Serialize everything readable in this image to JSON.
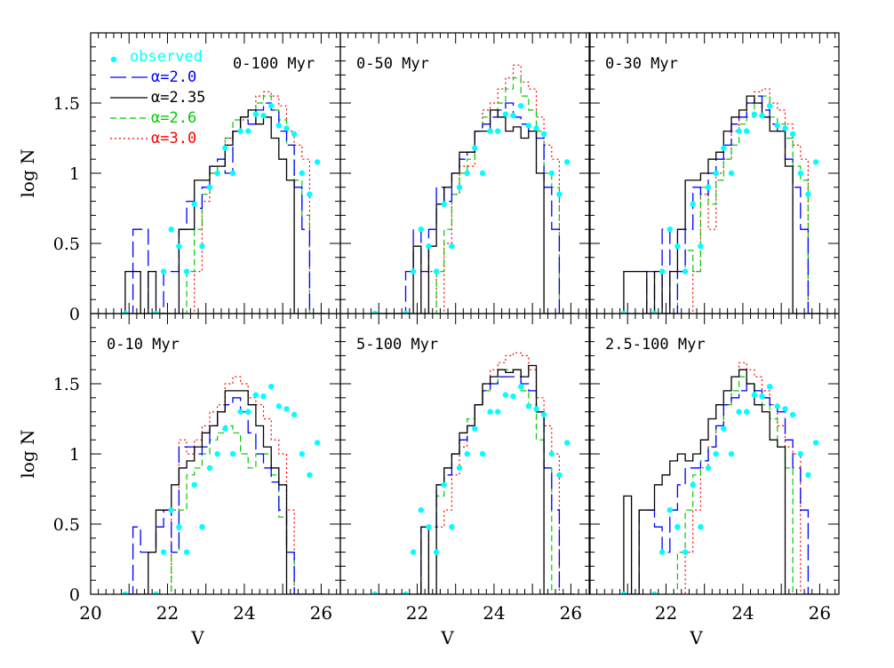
{
  "chart_data": {
    "type": "histogram-grid",
    "ylabel": "log N",
    "xlabel": "V",
    "x_ticks": [
      "20",
      "22",
      "24",
      "26"
    ],
    "y_ticks": [
      "0",
      "0.5",
      "1",
      "1.5"
    ],
    "xlim": [
      20,
      26.5
    ],
    "ylim": [
      0,
      2.0
    ],
    "legend": {
      "placement": "top-left of first panel",
      "entries": [
        {
          "key": "observed",
          "label": "observed",
          "color": "#00ffff",
          "style": "dots"
        },
        {
          "key": "a20",
          "label": "α=2.0",
          "color": "#0000ff",
          "style": "long-dash"
        },
        {
          "key": "a235",
          "label": "α=2.35",
          "color": "#000000",
          "style": "solid"
        },
        {
          "key": "a26",
          "label": "α=2.6",
          "color": "#00cc00",
          "style": "short-dash"
        },
        {
          "key": "a30",
          "label": "α=3.0",
          "color": "#ff0000",
          "style": "dotted"
        }
      ]
    },
    "bin_edges": [
      20.9,
      21.1,
      21.3,
      21.5,
      21.7,
      21.9,
      22.1,
      22.3,
      22.5,
      22.7,
      22.9,
      23.1,
      23.3,
      23.5,
      23.7,
      23.9,
      24.1,
      24.3,
      24.5,
      24.7,
      24.9,
      25.1,
      25.3,
      25.5,
      25.7,
      25.9,
      26.1
    ],
    "observed": {
      "x": [
        20.9,
        21.7,
        21.9,
        22.1,
        22.3,
        22.5,
        22.7,
        22.9,
        23.1,
        23.3,
        23.5,
        23.7,
        23.9,
        24.1,
        24.3,
        24.5,
        24.7,
        24.9,
        25.1,
        25.3,
        25.5,
        25.7,
        25.9
      ],
      "y": [
        0.0,
        0.0,
        0.3,
        0.6,
        0.48,
        0.3,
        0.78,
        0.48,
        0.9,
        1.0,
        1.18,
        1.0,
        1.3,
        1.3,
        1.42,
        1.41,
        1.48,
        1.34,
        1.32,
        1.28,
        1.0,
        0.85,
        1.08
      ]
    },
    "panels": [
      {
        "title": "0-100 Myr",
        "series": {
          "a20": [
            0,
            0.6,
            0.6,
            0,
            0,
            0.3,
            0.3,
            0.6,
            0.8,
            0.75,
            0.9,
            1.05,
            1.1,
            1.0,
            1.3,
            1.4,
            1.35,
            1.45,
            1.5,
            1.45,
            1.3,
            1.2,
            0.9,
            0.6,
            0.0,
            0.0
          ],
          "a235": [
            0.3,
            0.3,
            0,
            0.3,
            0,
            0,
            0,
            0.6,
            0.6,
            0.95,
            0.95,
            1.05,
            1.05,
            1.2,
            1.3,
            1.4,
            1.45,
            1.35,
            1.4,
            1.25,
            1.1,
            0.95,
            0.0,
            0.0,
            0.0,
            0.0
          ],
          "a26": [
            0,
            0,
            0,
            0,
            0,
            0,
            0,
            0,
            0.3,
            0.6,
            0.85,
            1.0,
            1.05,
            1.25,
            1.38,
            1.4,
            1.45,
            1.5,
            1.55,
            1.45,
            1.38,
            1.2,
            0.95,
            0.7,
            0.0,
            0.0
          ],
          "a30": [
            0,
            0,
            0,
            0,
            0,
            0,
            0,
            0,
            0,
            0.3,
            0.8,
            1.0,
            1.05,
            1.25,
            1.3,
            1.38,
            1.45,
            1.55,
            1.58,
            1.55,
            1.48,
            1.3,
            1.2,
            1.1,
            0.0,
            0.0
          ]
        }
      },
      {
        "title": "0-50 Myr",
        "series": {
          "a20": [
            0,
            0,
            0,
            0,
            0.3,
            0.6,
            0.3,
            0.6,
            0.9,
            0.8,
            1.0,
            1.1,
            1.15,
            1.3,
            1.35,
            1.4,
            1.45,
            1.5,
            1.4,
            1.35,
            1.3,
            1.25,
            0.9,
            0.6,
            0.0,
            0.0
          ],
          "a235": [
            0,
            0,
            0,
            0,
            0,
            0.48,
            0,
            0.48,
            0.78,
            0.9,
            1.0,
            1.15,
            1.15,
            1.3,
            1.3,
            1.45,
            1.4,
            1.3,
            1.33,
            1.25,
            1.3,
            1.0,
            0.0,
            0.0,
            0.0,
            0.0
          ],
          "a26": [
            0,
            0,
            0,
            0,
            0,
            0,
            0,
            0,
            0.3,
            0.6,
            0.85,
            1.0,
            1.1,
            1.3,
            1.4,
            1.45,
            1.5,
            1.6,
            1.68,
            1.55,
            1.45,
            1.3,
            1.0,
            0.9,
            0.0,
            0.0
          ],
          "a30": [
            0,
            0,
            0,
            0,
            0,
            0,
            0,
            0.3,
            0,
            0.5,
            0.85,
            1.05,
            1.05,
            1.3,
            1.45,
            1.5,
            1.6,
            1.68,
            1.77,
            1.65,
            1.6,
            1.4,
            1.2,
            1.1,
            0.0,
            0.0
          ]
        }
      },
      {
        "title": "0-30 Myr",
        "series": {
          "a20": [
            0,
            0,
            0,
            0.3,
            0,
            0.6,
            0,
            0.3,
            0.6,
            0.9,
            0.85,
            1.0,
            1.1,
            1.2,
            1.35,
            1.4,
            1.5,
            1.55,
            1.45,
            1.35,
            1.3,
            1.1,
            0.9,
            0.6,
            0.0,
            0.0
          ],
          "a235": [
            0.3,
            0.3,
            0.3,
            0,
            0.3,
            0,
            0.3,
            0.6,
            0.95,
            0.95,
            1.0,
            1.1,
            1.15,
            1.3,
            1.4,
            1.45,
            1.55,
            1.5,
            1.4,
            1.3,
            1.3,
            1.05,
            0.0,
            0.0,
            0.0,
            0.0
          ],
          "a26": [
            0,
            0,
            0,
            0,
            0,
            0,
            0,
            0.3,
            0.45,
            0.3,
            0.9,
            0.78,
            0.95,
            1.1,
            1.2,
            1.35,
            1.4,
            1.5,
            1.55,
            1.4,
            1.35,
            1.25,
            1.05,
            0.95,
            0.0,
            0.0
          ],
          "a30": [
            0,
            0,
            0,
            0,
            0,
            0,
            0,
            0,
            0,
            0.3,
            0.85,
            0.6,
            1.0,
            1.1,
            1.3,
            1.4,
            1.5,
            1.58,
            1.6,
            1.5,
            1.45,
            1.35,
            1.2,
            1.1,
            0.0,
            0.0
          ]
        }
      },
      {
        "title": "0-10 Myr",
        "series": {
          "a20": [
            0,
            0.48,
            0.3,
            0.3,
            0.48,
            0.6,
            0.3,
            1.05,
            1.05,
            1.0,
            1.05,
            1.2,
            1.3,
            1.35,
            1.4,
            1.3,
            1.15,
            1.0,
            0.9,
            0.8,
            0.6,
            0.3,
            0.0,
            0.0,
            0.0,
            0.0
          ],
          "a235": [
            0,
            0,
            0,
            0.3,
            0.6,
            0.6,
            0.78,
            0.9,
            0.95,
            1.05,
            1.15,
            1.2,
            1.3,
            1.45,
            1.45,
            1.45,
            1.35,
            1.2,
            1.05,
            0.9,
            0.78,
            0.0,
            0.0,
            0.0,
            0.0,
            0.0
          ],
          "a26": [
            0,
            0,
            0,
            0,
            0,
            0,
            0.3,
            0.6,
            0.85,
            0.9,
            1.0,
            1.1,
            1.15,
            1.2,
            1.15,
            1.0,
            0.9,
            1.0,
            1.0,
            0.85,
            0.55,
            0.3,
            0.0,
            0.0,
            0.0,
            0.0
          ],
          "a30": [
            0,
            0,
            0,
            0,
            0,
            0,
            0.6,
            1.1,
            1.0,
            1.1,
            1.2,
            1.3,
            1.35,
            1.5,
            1.55,
            1.5,
            1.4,
            1.35,
            1.25,
            1.1,
            1.0,
            0.6,
            0.0,
            0.0,
            0.0,
            0.0
          ]
        }
      },
      {
        "title": "5-100 Myr",
        "series": {
          "a20": [
            0,
            0,
            0,
            0,
            0,
            0,
            0.48,
            0.48,
            0.78,
            0.85,
            1.0,
            1.1,
            1.2,
            1.35,
            1.45,
            1.5,
            1.55,
            1.55,
            1.55,
            1.5,
            1.45,
            1.3,
            0.9,
            0.6,
            0.0,
            0.0
          ],
          "a235": [
            0,
            0,
            0,
            0,
            0,
            0,
            0.48,
            0,
            0.78,
            0.9,
            1.0,
            1.15,
            1.2,
            1.35,
            1.5,
            1.55,
            1.6,
            1.58,
            1.6,
            1.55,
            1.63,
            1.3,
            0.0,
            0.0,
            0.0,
            0.0
          ],
          "a26": [
            0,
            0,
            0,
            0,
            0,
            0,
            0,
            0.48,
            0.7,
            0.9,
            1.0,
            1.1,
            1.25,
            1.35,
            1.45,
            1.5,
            1.55,
            1.6,
            1.6,
            1.45,
            1.35,
            1.1,
            0.9,
            0.0,
            0.0,
            0.0
          ],
          "a30": [
            0,
            0,
            0,
            0,
            0,
            0,
            0,
            0,
            0.48,
            0.6,
            0.85,
            1.05,
            1.2,
            1.35,
            1.5,
            1.6,
            1.65,
            1.7,
            1.72,
            1.7,
            1.6,
            1.4,
            1.2,
            1.0,
            0.0,
            0.0
          ]
        }
      },
      {
        "title": "2.5-100 Myr",
        "series": {
          "a20": [
            0,
            0,
            0.6,
            0.6,
            0.48,
            0.3,
            0.6,
            0.78,
            0.9,
            0.9,
            0.95,
            1.05,
            1.2,
            1.35,
            1.4,
            1.45,
            1.5,
            1.45,
            1.4,
            1.35,
            1.3,
            1.1,
            0.9,
            0.6,
            0.0,
            0.0
          ],
          "a235": [
            0.7,
            0,
            0.6,
            0.6,
            0.78,
            0.85,
            0.95,
            1.0,
            0.95,
            1.0,
            1.1,
            1.25,
            1.35,
            1.45,
            1.55,
            1.6,
            1.5,
            1.35,
            1.3,
            1.1,
            1.05,
            0.0,
            0.0,
            0.0,
            0.0,
            0.0
          ],
          "a26": [
            0,
            0,
            0,
            0,
            0,
            0,
            0,
            0.3,
            0.6,
            0.85,
            0.95,
            1.05,
            1.2,
            1.35,
            1.45,
            1.55,
            1.5,
            1.45,
            1.35,
            1.25,
            1.05,
            0.9,
            0.0,
            0.0,
            0.0,
            0.0
          ],
          "a30": [
            0,
            0,
            0,
            0,
            0,
            0,
            0,
            0,
            0.3,
            0.6,
            0.9,
            1.05,
            1.2,
            1.35,
            1.55,
            1.65,
            1.6,
            1.55,
            1.45,
            1.35,
            1.2,
            1.05,
            1.0,
            0.0,
            0.0,
            0.0
          ]
        }
      }
    ]
  }
}
